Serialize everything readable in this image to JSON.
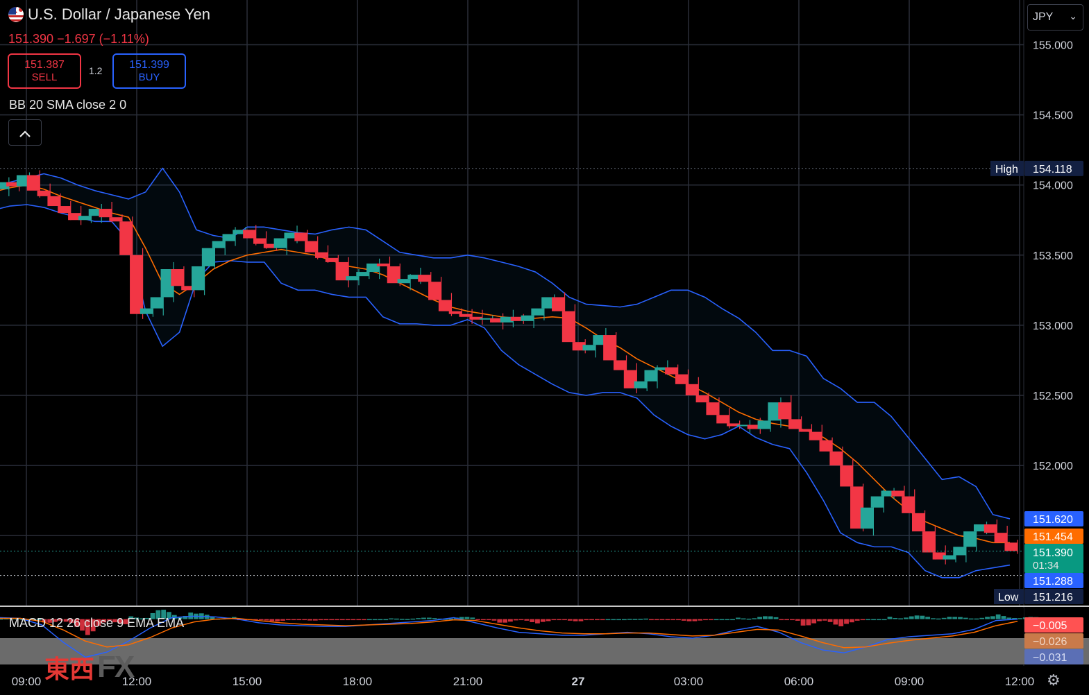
{
  "header": {
    "title": "U.S. Dollar / Japanese Yen",
    "last": "151.390",
    "change": "−1.697",
    "change_pct": "(−1.11%)",
    "sell_price": "151.387",
    "sell_label": "SELL",
    "buy_price": "151.399",
    "buy_label": "BUY",
    "spread": "1.2",
    "currency": "JPY"
  },
  "indicators": {
    "bb_label": "BB 20 SMA close 2 0",
    "macd_label": "MACD 12 26 close 9 EMA EMA"
  },
  "price_labels": {
    "high_tag": "High",
    "high_value": "154.118",
    "upper_band": "151.620",
    "basis": "151.454",
    "last": "151.390",
    "countdown": "01:34",
    "lower_band": "151.288",
    "low_tag": "Low",
    "low_value": "151.216",
    "macd_hist": "−0.005",
    "macd_signal": "−0.026",
    "macd_line": "−0.031"
  },
  "logo": {
    "kanji": "東西",
    "fx": "FX"
  },
  "colors": {
    "up": "#26a69a",
    "down": "#f23645",
    "bb_band": "#2962ff",
    "bb_basis": "#ff6d00",
    "grid": "#2a2e39",
    "tag_blue": "#2962ff",
    "tag_orange": "#ff6d00",
    "tag_green": "#089981",
    "tag_navy": "#132042"
  },
  "chart_data": {
    "type": "candlestick",
    "symbol": "USDJPY",
    "interval_minutes": 15,
    "y_ticks": [
      155.0,
      154.5,
      154.0,
      153.5,
      153.0,
      152.5,
      152.0
    ],
    "x_ticks": [
      "09:00",
      "12:00",
      "15:00",
      "18:00",
      "21:00",
      "27",
      "03:00",
      "06:00",
      "09:00",
      "12:00"
    ],
    "x_tick_times": [
      0,
      3,
      6,
      9,
      12,
      15,
      18,
      21,
      24,
      27
    ],
    "high": 154.118,
    "low": 151.216,
    "close": [
      153.97,
      154.02,
      153.99,
      154.07,
      153.96,
      153.92,
      153.85,
      153.8,
      153.75,
      153.78,
      153.83,
      153.77,
      153.74,
      153.5,
      153.08,
      153.12,
      153.2,
      153.4,
      153.28,
      153.25,
      153.42,
      153.55,
      153.6,
      153.65,
      153.68,
      153.62,
      153.58,
      153.55,
      153.62,
      153.66,
      153.6,
      153.52,
      153.48,
      153.45,
      153.32,
      153.35,
      153.38,
      153.44,
      153.42,
      153.3,
      153.33,
      153.36,
      153.31,
      153.18,
      153.1,
      153.08,
      153.06,
      153.04,
      153.05,
      153.02,
      153.06,
      153.03,
      153.07,
      153.12,
      153.2,
      153.1,
      152.88,
      152.82,
      152.86,
      152.93,
      152.75,
      152.68,
      152.55,
      152.6,
      152.68,
      152.7,
      152.65,
      152.58,
      152.5,
      152.45,
      152.36,
      152.3,
      152.28,
      152.29,
      152.26,
      152.32,
      152.45,
      152.33,
      152.26,
      152.24,
      152.18,
      152.1,
      152.0,
      151.85,
      151.55,
      151.7,
      151.78,
      151.82,
      151.78,
      151.66,
      151.53,
      151.38,
      151.33,
      151.36,
      151.42,
      151.53,
      151.58,
      151.52,
      151.45,
      151.39
    ],
    "bb_upper": [
      153.95,
      154.02,
      154.05,
      154.08,
      154.05,
      154.0,
      153.96,
      153.93,
      153.9,
      153.95,
      154.12,
      153.95,
      153.68,
      153.64,
      153.62,
      153.7,
      153.7,
      153.68,
      153.66,
      153.65,
      153.68,
      153.7,
      153.68,
      153.6,
      153.52,
      153.5,
      153.48,
      153.48,
      153.5,
      153.48,
      153.45,
      153.42,
      153.38,
      153.3,
      153.2,
      153.15,
      153.14,
      153.13,
      153.15,
      153.2,
      153.25,
      153.25,
      153.2,
      153.12,
      153.05,
      152.95,
      152.82,
      152.82,
      152.78,
      152.62,
      152.55,
      152.45,
      152.45,
      152.35,
      152.2,
      152.05,
      151.9,
      151.92,
      151.85,
      151.65,
      151.62
    ],
    "bb_basis": [
      153.95,
      153.98,
      154.0,
      153.97,
      153.92,
      153.88,
      153.84,
      153.8,
      153.77,
      153.55,
      153.3,
      153.22,
      153.3,
      153.4,
      153.46,
      153.5,
      153.52,
      153.54,
      153.52,
      153.5,
      153.46,
      153.42,
      153.4,
      153.36,
      153.3,
      153.24,
      153.18,
      153.13,
      153.1,
      153.08,
      153.06,
      153.05,
      153.05,
      153.06,
      153.05,
      152.98,
      152.9,
      152.84,
      152.76,
      152.7,
      152.64,
      152.58,
      152.52,
      152.45,
      152.38,
      152.33,
      152.3,
      152.28,
      152.25,
      152.2,
      152.12,
      152.02,
      151.9,
      151.78,
      151.68,
      151.6,
      151.55,
      151.5,
      151.48,
      151.45,
      151.45
    ],
    "bb_lower": [
      153.82,
      153.85,
      153.86,
      153.84,
      153.8,
      153.77,
      153.74,
      153.74,
      153.6,
      153.1,
      152.85,
      152.95,
      153.32,
      153.45,
      153.46,
      153.45,
      153.45,
      153.3,
      153.25,
      153.25,
      153.22,
      153.2,
      153.2,
      153.06,
      153.01,
      153.01,
      153.0,
      153.0,
      153.04,
      152.98,
      152.82,
      152.72,
      152.65,
      152.58,
      152.52,
      152.5,
      152.52,
      152.52,
      152.48,
      152.36,
      152.28,
      152.22,
      152.19,
      152.22,
      152.28,
      152.2,
      152.15,
      152.12,
      151.95,
      151.75,
      151.52,
      151.45,
      151.42,
      151.42,
      151.38,
      151.25,
      151.2,
      151.2,
      151.25,
      151.27,
      151.29
    ],
    "macd_range": [
      -0.6,
      0.1
    ],
    "macd_line": [
      0.02,
      0.01,
      -0.08,
      -0.32,
      -0.52,
      -0.45,
      -0.3,
      -0.12,
      0.02,
      0.04,
      0.03,
      0.0,
      -0.05,
      -0.08,
      -0.09,
      -0.1,
      -0.1,
      -0.08,
      -0.06,
      -0.04,
      -0.02,
      0.02,
      -0.05,
      -0.12,
      -0.18,
      -0.2,
      -0.22,
      -0.22,
      -0.2,
      -0.18,
      -0.2,
      -0.24,
      -0.26,
      -0.22,
      -0.15,
      -0.1,
      -0.18,
      -0.32,
      -0.42,
      -0.46,
      -0.38,
      -0.28,
      -0.24,
      -0.22,
      -0.2,
      -0.14,
      -0.02,
      0.0
    ],
    "macd_signal": [
      0.01,
      0.01,
      -0.03,
      -0.15,
      -0.3,
      -0.38,
      -0.35,
      -0.25,
      -0.12,
      -0.04,
      0.0,
      0.01,
      -0.02,
      -0.05,
      -0.07,
      -0.08,
      -0.09,
      -0.08,
      -0.07,
      -0.06,
      -0.04,
      -0.01,
      -0.02,
      -0.07,
      -0.12,
      -0.16,
      -0.19,
      -0.2,
      -0.2,
      -0.19,
      -0.19,
      -0.21,
      -0.23,
      -0.22,
      -0.18,
      -0.14,
      -0.15,
      -0.23,
      -0.32,
      -0.39,
      -0.38,
      -0.33,
      -0.29,
      -0.26,
      -0.23,
      -0.18,
      -0.09,
      -0.03
    ]
  }
}
